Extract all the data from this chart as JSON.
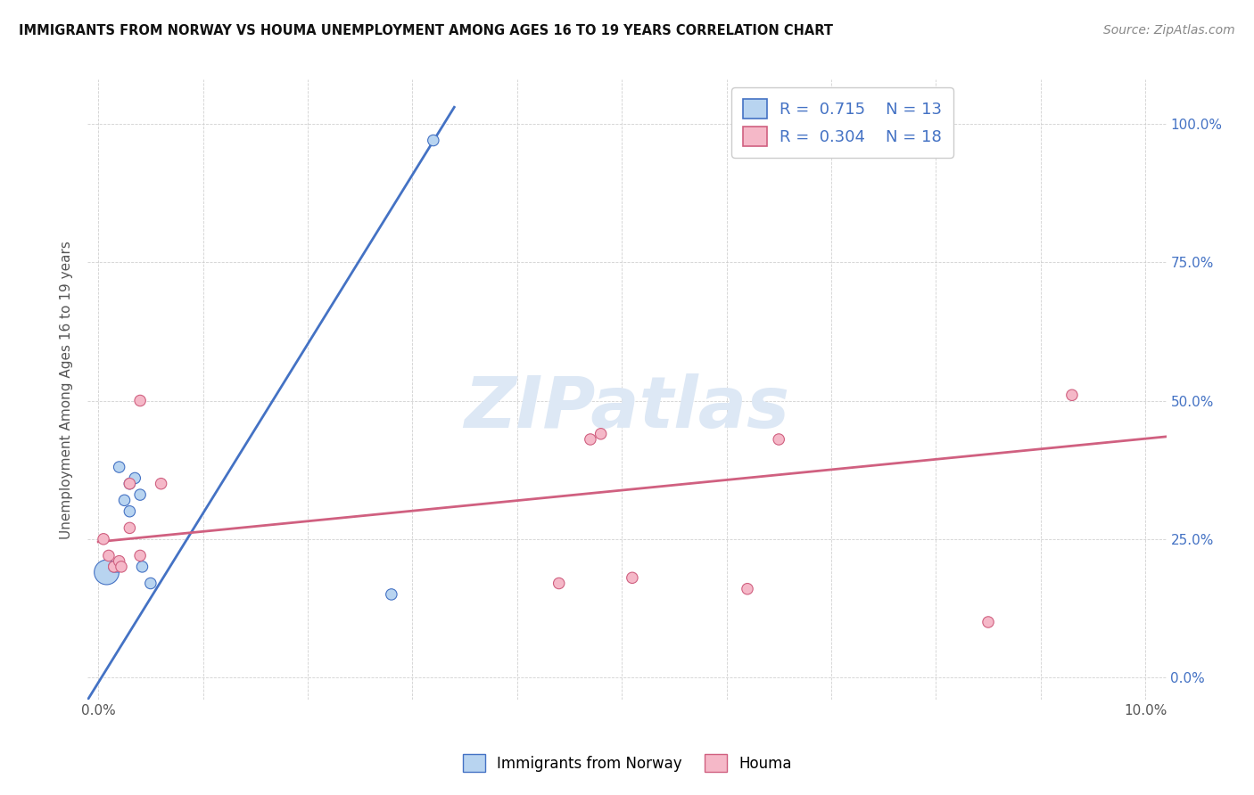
{
  "title": "IMMIGRANTS FROM NORWAY VS HOUMA UNEMPLOYMENT AMONG AGES 16 TO 19 YEARS CORRELATION CHART",
  "source": "Source: ZipAtlas.com",
  "ylabel": "Unemployment Among Ages 16 to 19 years",
  "xlim": [
    -0.001,
    0.102
  ],
  "ylim": [
    -0.04,
    1.08
  ],
  "x_ticks": [
    0.0,
    0.01,
    0.02,
    0.03,
    0.04,
    0.05,
    0.06,
    0.07,
    0.08,
    0.09,
    0.1
  ],
  "x_tick_labels": [
    "0.0%",
    "",
    "",
    "",
    "",
    "",
    "",
    "",
    "",
    "",
    "10.0%"
  ],
  "y_ticks": [
    0.0,
    0.25,
    0.5,
    0.75,
    1.0
  ],
  "y_tick_labels_right": [
    "0.0%",
    "25.0%",
    "50.0%",
    "75.0%",
    "100.0%"
  ],
  "norway_R": "0.715",
  "norway_N": "13",
  "houma_R": "0.304",
  "houma_N": "18",
  "norway_color": "#b8d4f0",
  "norway_line_color": "#4472c4",
  "houma_color": "#f5b8c8",
  "houma_line_color": "#d06080",
  "watermark_color": "#dde8f5",
  "norway_scatter_x": [
    0.0008,
    0.0015,
    0.0018,
    0.002,
    0.0025,
    0.003,
    0.003,
    0.0035,
    0.004,
    0.0042,
    0.005,
    0.028,
    0.032
  ],
  "norway_scatter_y": [
    0.19,
    0.2,
    0.2,
    0.38,
    0.32,
    0.3,
    0.35,
    0.36,
    0.33,
    0.2,
    0.17,
    0.15,
    0.97
  ],
  "norway_scatter_size": [
    400,
    80,
    80,
    80,
    80,
    80,
    80,
    80,
    80,
    80,
    80,
    80,
    80
  ],
  "houma_scatter_x": [
    0.0005,
    0.001,
    0.0015,
    0.002,
    0.0022,
    0.003,
    0.003,
    0.004,
    0.004,
    0.006,
    0.044,
    0.047,
    0.048,
    0.051,
    0.062,
    0.065,
    0.085,
    0.093
  ],
  "houma_scatter_y": [
    0.25,
    0.22,
    0.2,
    0.21,
    0.2,
    0.27,
    0.35,
    0.22,
    0.5,
    0.35,
    0.17,
    0.43,
    0.44,
    0.18,
    0.16,
    0.43,
    0.1,
    0.51
  ],
  "houma_scatter_size": [
    80,
    80,
    80,
    80,
    80,
    80,
    80,
    80,
    80,
    80,
    80,
    80,
    80,
    80,
    80,
    80,
    80,
    80
  ],
  "norway_trendline_x": [
    -0.001,
    0.034
  ],
  "norway_trendline_y": [
    -0.04,
    1.03
  ],
  "houma_trendline_x": [
    0.0,
    0.102
  ],
  "houma_trendline_y": [
    0.245,
    0.435
  ],
  "grid_color": "#cccccc",
  "tick_color": "#4472c4",
  "ylabel_color": "#555555",
  "title_color": "#111111",
  "source_color": "#888888"
}
